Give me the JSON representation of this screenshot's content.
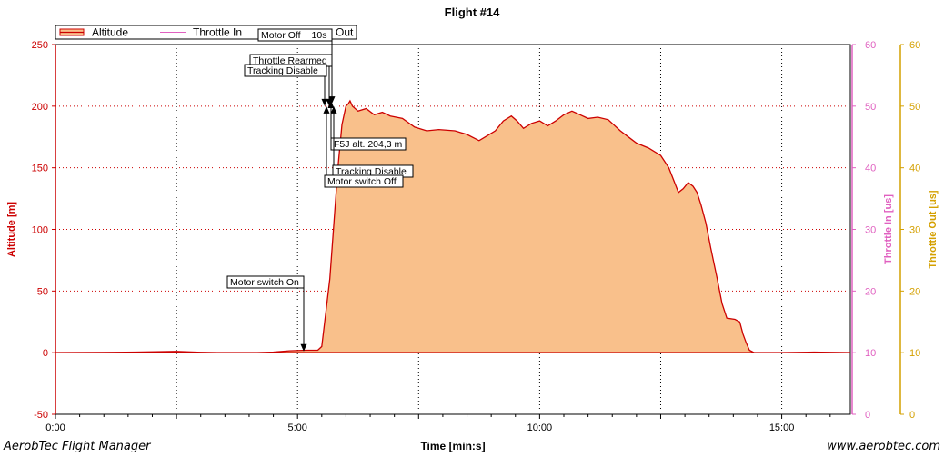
{
  "chart_data": {
    "type": "area",
    "title": "Flight #14",
    "xlabel": "Time [min:s]",
    "xlim": [
      0,
      985
    ],
    "x_ticks": [
      0,
      300,
      600,
      900
    ],
    "x_tick_labels": [
      "0:00",
      "5:00",
      "10:00",
      "15:00"
    ],
    "grid": true,
    "legend_position": "top-left",
    "axes": {
      "left": {
        "label": "Altitude [m]",
        "range": [
          -50,
          250
        ],
        "ticks": [
          -50,
          0,
          50,
          100,
          150,
          200,
          250
        ],
        "color": "#cc0000"
      },
      "right1": {
        "label": "Throttle In [us]",
        "range": [
          0,
          60
        ],
        "ticks": [
          0,
          10,
          20,
          30,
          40,
          50,
          60
        ],
        "color": "#e060c0"
      },
      "right2": {
        "label": "Throttle Out [us]",
        "range": [
          0,
          60
        ],
        "ticks": [
          0,
          10,
          20,
          30,
          40,
          50,
          60
        ],
        "color": "#d4a000"
      }
    },
    "series": [
      {
        "name": "Altitude",
        "axis": "left",
        "color": "#cc0000",
        "fill": "#f9c08b",
        "points": [
          [
            0,
            0
          ],
          [
            60,
            0.2
          ],
          [
            100,
            0.5
          ],
          [
            150,
            1
          ],
          [
            180,
            0.3
          ],
          [
            200,
            0
          ],
          [
            250,
            0
          ],
          [
            270,
            0.5
          ],
          [
            290,
            1.5
          ],
          [
            310,
            2
          ],
          [
            325,
            2
          ],
          [
            330,
            5
          ],
          [
            340,
            60
          ],
          [
            350,
            150
          ],
          [
            355,
            185
          ],
          [
            360,
            200
          ],
          [
            363,
            202
          ],
          [
            365,
            204.3
          ],
          [
            368,
            200
          ],
          [
            375,
            196
          ],
          [
            385,
            198
          ],
          [
            395,
            193
          ],
          [
            405,
            195
          ],
          [
            415,
            192
          ],
          [
            430,
            190
          ],
          [
            445,
            183
          ],
          [
            460,
            180
          ],
          [
            475,
            181
          ],
          [
            495,
            180
          ],
          [
            510,
            177
          ],
          [
            525,
            172
          ],
          [
            535,
            176
          ],
          [
            545,
            180
          ],
          [
            555,
            188
          ],
          [
            565,
            192
          ],
          [
            572,
            188
          ],
          [
            580,
            182
          ],
          [
            590,
            186
          ],
          [
            600,
            188
          ],
          [
            610,
            184
          ],
          [
            620,
            188
          ],
          [
            630,
            193
          ],
          [
            640,
            196
          ],
          [
            650,
            193
          ],
          [
            660,
            190
          ],
          [
            672,
            191
          ],
          [
            685,
            189
          ],
          [
            700,
            180
          ],
          [
            710,
            175
          ],
          [
            720,
            170
          ],
          [
            735,
            166
          ],
          [
            750,
            160
          ],
          [
            760,
            150
          ],
          [
            766,
            140
          ],
          [
            772,
            130
          ],
          [
            778,
            133
          ],
          [
            784,
            138
          ],
          [
            790,
            135
          ],
          [
            795,
            130
          ],
          [
            800,
            120
          ],
          [
            806,
            105
          ],
          [
            812,
            85
          ],
          [
            820,
            60
          ],
          [
            826,
            40
          ],
          [
            832,
            28
          ],
          [
            842,
            27
          ],
          [
            848,
            25
          ],
          [
            852,
            15
          ],
          [
            856,
            8
          ],
          [
            860,
            2
          ],
          [
            866,
            0
          ],
          [
            900,
            0
          ],
          [
            940,
            0.5
          ],
          [
            985,
            0
          ]
        ]
      },
      {
        "name": "Throttle In",
        "axis": "right1",
        "color": "#e060c0",
        "values": []
      },
      {
        "name": "Throttle Out",
        "axis": "right2",
        "color": "#d4a000",
        "values": []
      }
    ],
    "legend_extra": "Out",
    "annotations": [
      {
        "text": "Motor switch On",
        "x": 308,
        "y": 1,
        "label_side": "above"
      },
      {
        "text": "Throttle Rearmed",
        "x": 364,
        "y": 200,
        "label_side": "above"
      },
      {
        "text": "Tracking Disable",
        "x": 362,
        "y": 200,
        "label_side": "above"
      },
      {
        "text": "Motor Off + 10s",
        "x": 368,
        "y": 202,
        "label_side": "above"
      },
      {
        "text": "F5J alt. 204,3 m",
        "x": 366,
        "y": 204.3,
        "label_side": "below"
      },
      {
        "text": "Tracking Disable",
        "x": 369,
        "y": 200,
        "label_side": "below"
      },
      {
        "text": "Motor switch Off",
        "x": 365,
        "y": 200,
        "label_side": "below"
      }
    ]
  },
  "footer": {
    "left": "AerobTec Flight Manager",
    "right": "www.aerobtec.com"
  }
}
